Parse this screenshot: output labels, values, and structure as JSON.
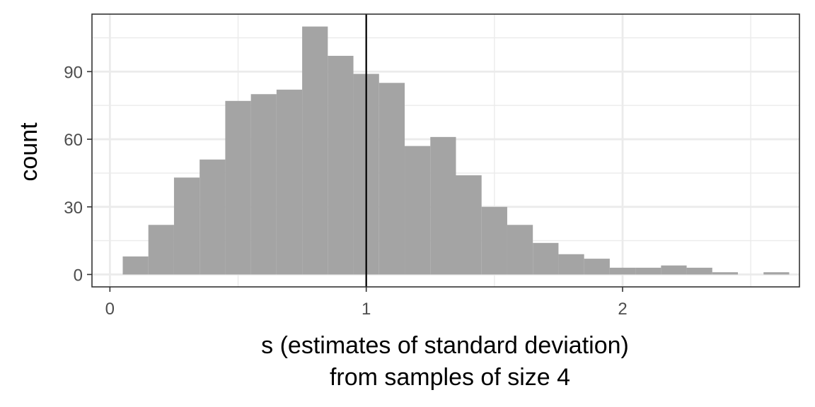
{
  "chart_data": {
    "type": "bar",
    "subtype": "histogram",
    "xlabel_line1": "s (estimates of standard deviation)",
    "xlabel_line2": "from samples of size 4",
    "ylabel": "count",
    "xlim": [
      -0.07,
      2.69
    ],
    "ylim": [
      -5.5,
      115.5
    ],
    "x_ticks": [
      0,
      1,
      2
    ],
    "x_tick_labels": [
      "0",
      "1",
      "2"
    ],
    "y_ticks": [
      0,
      30,
      60,
      90
    ],
    "y_tick_labels": [
      "0",
      "30",
      "60",
      "90"
    ],
    "bin_width": 0.1,
    "bins": [
      {
        "x_start": 0.05,
        "count": 8
      },
      {
        "x_start": 0.15,
        "count": 22
      },
      {
        "x_start": 0.25,
        "count": 43
      },
      {
        "x_start": 0.35,
        "count": 51
      },
      {
        "x_start": 0.45,
        "count": 77
      },
      {
        "x_start": 0.55,
        "count": 80
      },
      {
        "x_start": 0.65,
        "count": 82
      },
      {
        "x_start": 0.75,
        "count": 110
      },
      {
        "x_start": 0.85,
        "count": 97
      },
      {
        "x_start": 0.95,
        "count": 89
      },
      {
        "x_start": 1.05,
        "count": 85
      },
      {
        "x_start": 1.15,
        "count": 57
      },
      {
        "x_start": 1.25,
        "count": 61
      },
      {
        "x_start": 1.35,
        "count": 44
      },
      {
        "x_start": 1.45,
        "count": 30
      },
      {
        "x_start": 1.55,
        "count": 22
      },
      {
        "x_start": 1.65,
        "count": 14
      },
      {
        "x_start": 1.75,
        "count": 9
      },
      {
        "x_start": 1.85,
        "count": 7
      },
      {
        "x_start": 1.95,
        "count": 3
      },
      {
        "x_start": 2.05,
        "count": 3
      },
      {
        "x_start": 2.15,
        "count": 4
      },
      {
        "x_start": 2.25,
        "count": 3
      },
      {
        "x_start": 2.35,
        "count": 1
      },
      {
        "x_start": 2.45,
        "count": 0
      },
      {
        "x_start": 2.55,
        "count": 1
      }
    ],
    "reference_line_x": 1,
    "colors": {
      "bar_fill": "#a4a4a4",
      "reference_line": "#000000",
      "grid": "#ebebeb",
      "panel_border": "#333333"
    },
    "grid": true,
    "legend": "none"
  }
}
